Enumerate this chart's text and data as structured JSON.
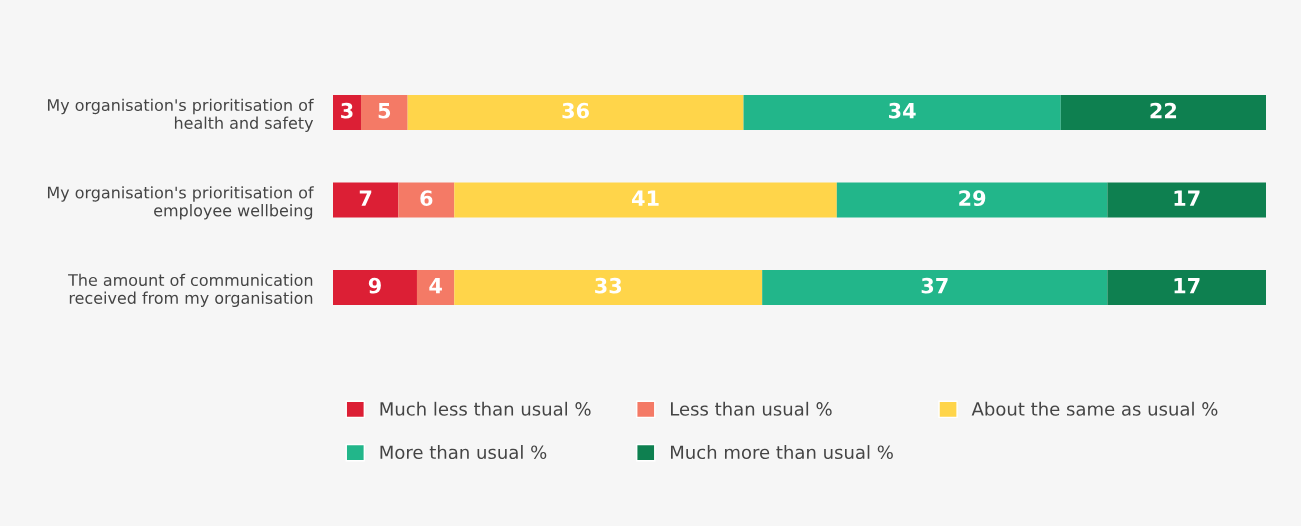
{
  "chart_data": {
    "type": "bar",
    "orientation": "horizontal",
    "stacked": true,
    "data_labels": true,
    "legend": "bottom",
    "grid": false,
    "categories": [
      "My organisation's prioritisation of\nhealth and safety",
      "My organisation's prioritisation of\nemployee wellbeing",
      "The amount of communication\nreceived from my organisation"
    ],
    "series": [
      {
        "name": "Much less than usual %",
        "color": "#dc1f35",
        "values": [
          3,
          7,
          9
        ]
      },
      {
        "name": "Less than usual %",
        "color": "#f47a66",
        "values": [
          5,
          6,
          4
        ]
      },
      {
        "name": "About the same as usual %",
        "color": "#ffd54a",
        "values": [
          36,
          41,
          33
        ]
      },
      {
        "name": "More than usual %",
        "color": "#22b68a",
        "values": [
          34,
          29,
          37
        ]
      },
      {
        "name": "Much more than usual %",
        "color": "#0e8050",
        "values": [
          22,
          17,
          17
        ]
      }
    ]
  }
}
